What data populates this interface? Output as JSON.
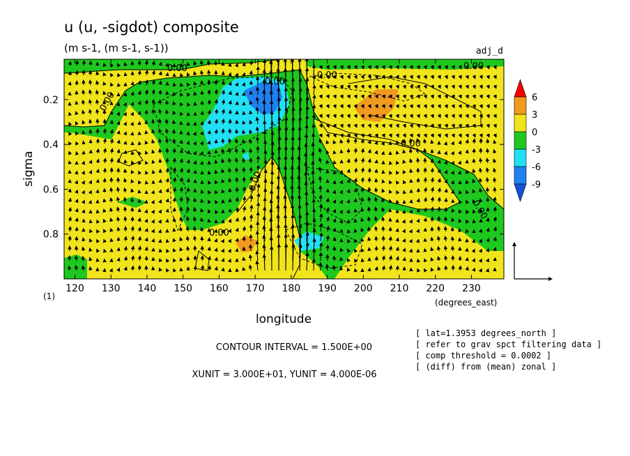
{
  "chart_data": {
    "type": "heatmap",
    "title": "u (u, -sigdot) composite",
    "subtitle": "(m s-1, (m s-1, s-1))",
    "run_label": "adj_d",
    "xlabel": "longitude",
    "x_units": "(degrees_east)",
    "ylabel": "sigma",
    "y_units": "(1)",
    "xlim": [
      117,
      239
    ],
    "ylim": [
      1.0,
      0.02
    ],
    "xticks": [
      "120",
      "130",
      "140",
      "150",
      "160",
      "170",
      "180",
      "190",
      "200",
      "210",
      "220",
      "230"
    ],
    "yticks": [
      "0.2",
      "0.4",
      "0.6",
      "0.8"
    ],
    "grid": false,
    "colorbar": {
      "labels": [
        "6",
        "3",
        "0",
        "-3",
        "-6",
        "-9"
      ],
      "colors": [
        "#f40000",
        "#f09a20",
        "#f2e41c",
        "#1ec81e",
        "#22e0f4",
        "#2080f0",
        "#1450d8"
      ]
    },
    "contour_labels": [
      "0.00",
      "0.00",
      "0.00",
      "0.00",
      "0.00",
      "0.00",
      "0.00",
      "0.00",
      "0.00"
    ],
    "contour_interval": "CONTOUR INTERVAL = 1.500E+00",
    "vector_units": "XUNIT = 3.000E+01, YUNIT = 4.000E-06",
    "annotations": [
      "[ lat=1.3953 degrees_north ]",
      "[ refer to grav spct filtering data ]",
      "[ comp threshold = 0.0002 ]",
      "[ (diff) from (mean) zonal ]"
    ]
  }
}
